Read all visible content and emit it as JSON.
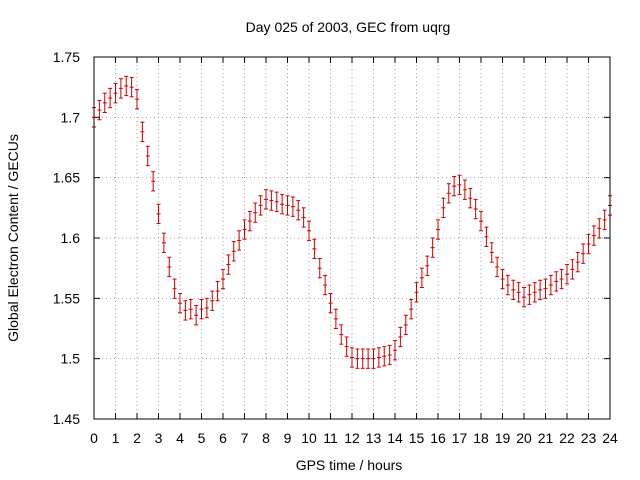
{
  "chart_data": {
    "type": "scatter",
    "title": "Day 025 of 2003, GEC from uqrg",
    "xlabel": "GPS time / hours",
    "ylabel": "Global Electron Content / GECUs",
    "xlim": [
      0,
      24
    ],
    "ylim": [
      1.45,
      1.75
    ],
    "x_ticks": [
      0,
      1,
      2,
      3,
      4,
      5,
      6,
      7,
      8,
      9,
      10,
      11,
      12,
      13,
      14,
      15,
      16,
      17,
      18,
      19,
      20,
      21,
      22,
      23,
      24
    ],
    "y_ticks": [
      1.45,
      1.5,
      1.55,
      1.6,
      1.65,
      1.7,
      1.75
    ],
    "y_tick_labels": [
      "1.45",
      "1.5",
      "1.55",
      "1.6",
      "1.65",
      "1.7",
      "1.75"
    ],
    "grid": true,
    "error_bar": 0.008,
    "colors": {
      "series": "#cc0000",
      "grid": "#a0a0a0",
      "axis": "#000000"
    },
    "series": [
      {
        "name": "GEC",
        "x": [
          0,
          0.25,
          0.5,
          0.75,
          1,
          1.25,
          1.5,
          1.75,
          2,
          2.25,
          2.5,
          2.75,
          3,
          3.25,
          3.5,
          3.75,
          4,
          4.25,
          4.5,
          4.75,
          5,
          5.25,
          5.5,
          5.75,
          6,
          6.25,
          6.5,
          6.75,
          7,
          7.25,
          7.5,
          7.75,
          8,
          8.25,
          8.5,
          8.75,
          9,
          9.25,
          9.5,
          9.75,
          10,
          10.25,
          10.5,
          10.75,
          11,
          11.25,
          11.5,
          11.75,
          12,
          12.25,
          12.5,
          12.75,
          13,
          13.25,
          13.5,
          13.75,
          14,
          14.25,
          14.5,
          14.75,
          15,
          15.25,
          15.5,
          15.75,
          16,
          16.25,
          16.5,
          16.75,
          17,
          17.25,
          17.5,
          17.75,
          18,
          18.25,
          18.5,
          18.75,
          19,
          19.25,
          19.5,
          19.75,
          20,
          20.25,
          20.5,
          20.75,
          21,
          21.25,
          21.5,
          21.75,
          22,
          22.25,
          22.5,
          22.75,
          23,
          23.25,
          23.5,
          23.75,
          24
        ],
        "values": [
          1.7,
          1.706,
          1.712,
          1.716,
          1.72,
          1.724,
          1.726,
          1.725,
          1.715,
          1.688,
          1.668,
          1.647,
          1.62,
          1.596,
          1.576,
          1.558,
          1.546,
          1.54,
          1.541,
          1.536,
          1.541,
          1.542,
          1.548,
          1.556,
          1.566,
          1.578,
          1.589,
          1.598,
          1.607,
          1.614,
          1.621,
          1.627,
          1.632,
          1.631,
          1.63,
          1.628,
          1.627,
          1.626,
          1.623,
          1.617,
          1.606,
          1.591,
          1.575,
          1.561,
          1.546,
          1.533,
          1.52,
          1.51,
          1.501,
          1.5,
          1.5,
          1.5,
          1.5,
          1.501,
          1.502,
          1.503,
          1.507,
          1.518,
          1.528,
          1.541,
          1.555,
          1.567,
          1.577,
          1.592,
          1.607,
          1.625,
          1.637,
          1.643,
          1.644,
          1.64,
          1.633,
          1.624,
          1.614,
          1.601,
          1.588,
          1.576,
          1.566,
          1.561,
          1.557,
          1.555,
          1.551,
          1.553,
          1.555,
          1.557,
          1.558,
          1.561,
          1.564,
          1.566,
          1.57,
          1.574,
          1.58,
          1.587,
          1.595,
          1.602,
          1.608,
          1.615,
          1.627
        ]
      }
    ]
  }
}
